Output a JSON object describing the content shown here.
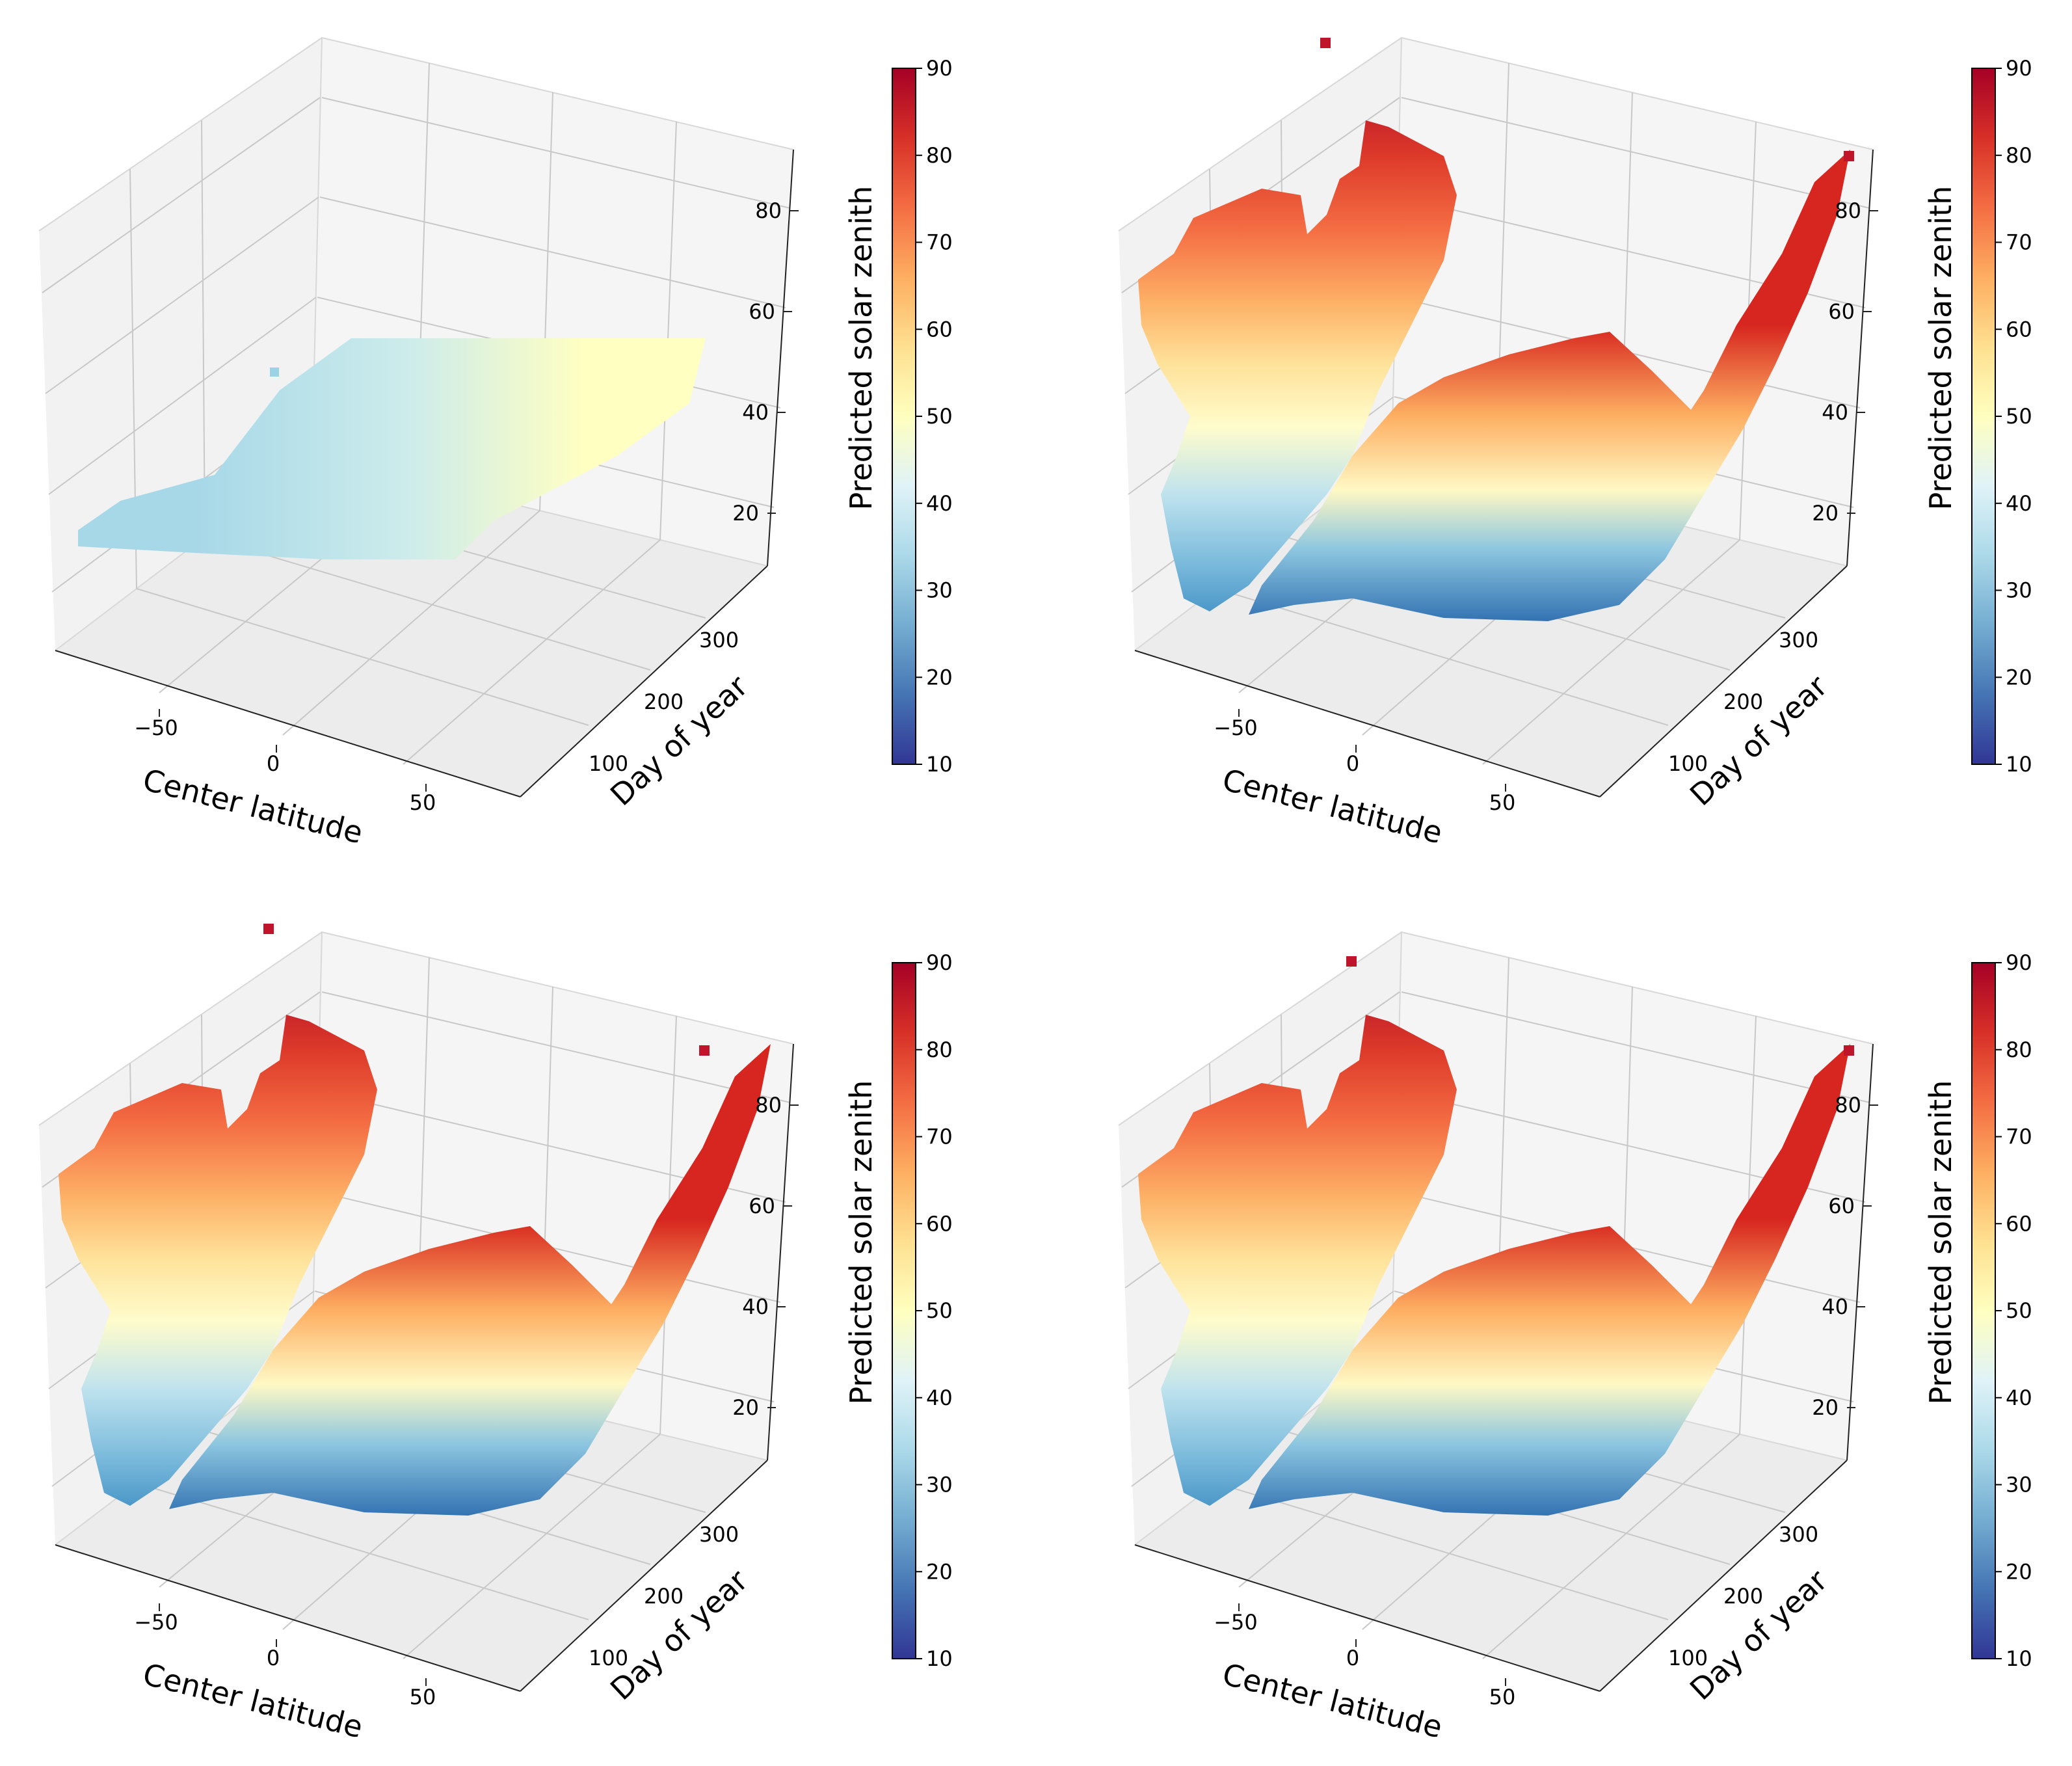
{
  "chart_data": [
    {
      "type": "surface3d",
      "panel": "top-left",
      "variant": "flat",
      "xlabel": "Center latitude",
      "ylabel": "Day of year",
      "zlabel": "Predicted solar zenith",
      "x_ticks": [
        "−50",
        "0",
        "50"
      ],
      "y_ticks": [
        "100",
        "200",
        "300"
      ],
      "z_ticks": [
        "20",
        "40",
        "60",
        "80"
      ],
      "colorbar_ticks": [
        "10",
        "20",
        "30",
        "40",
        "50",
        "60",
        "70",
        "80",
        "90"
      ],
      "colorbar_range": [
        10,
        90
      ],
      "colormap": "RdYlBu_r",
      "z_range_shown": [
        35,
        50
      ]
    },
    {
      "type": "surface3d",
      "panel": "top-right",
      "variant": "curved",
      "xlabel": "Center latitude",
      "ylabel": "Day of year",
      "zlabel": "Predicted solar zenith",
      "x_ticks": [
        "−50",
        "0",
        "50"
      ],
      "y_ticks": [
        "100",
        "200",
        "300"
      ],
      "z_ticks": [
        "20",
        "40",
        "60",
        "80"
      ],
      "colorbar_ticks": [
        "10",
        "20",
        "30",
        "40",
        "50",
        "60",
        "70",
        "80",
        "90"
      ],
      "colorbar_range": [
        10,
        90
      ],
      "colormap": "RdYlBu_r",
      "z_range_shown": [
        20,
        90
      ]
    },
    {
      "type": "surface3d",
      "panel": "bottom-left",
      "variant": "curved",
      "xlabel": "Center latitude",
      "ylabel": "Day of year",
      "zlabel": "Predicted solar zenith",
      "x_ticks": [
        "−50",
        "0",
        "50"
      ],
      "y_ticks": [
        "100",
        "200",
        "300"
      ],
      "z_ticks": [
        "20",
        "40",
        "60",
        "80"
      ],
      "colorbar_ticks": [
        "10",
        "20",
        "30",
        "40",
        "50",
        "60",
        "70",
        "80",
        "90"
      ],
      "colorbar_range": [
        10,
        90
      ],
      "colormap": "RdYlBu_r",
      "z_range_shown": [
        20,
        90
      ]
    },
    {
      "type": "surface3d",
      "panel": "bottom-right",
      "variant": "curved",
      "xlabel": "Center latitude",
      "ylabel": "Day of year",
      "zlabel": "Predicted solar zenith",
      "x_ticks": [
        "−50",
        "0",
        "50"
      ],
      "y_ticks": [
        "100",
        "200",
        "300"
      ],
      "z_ticks": [
        "20",
        "40",
        "60",
        "80"
      ],
      "colorbar_ticks": [
        "10",
        "20",
        "30",
        "40",
        "50",
        "60",
        "70",
        "80",
        "90"
      ],
      "colorbar_range": [
        10,
        90
      ],
      "colormap": "RdYlBu_r",
      "z_range_shown": [
        20,
        90
      ]
    }
  ],
  "colors": {
    "pane_side": "#f2f2f2",
    "pane_floor": "#ececec",
    "grid": "#c8c8c8",
    "axis": "#222222",
    "colormap_stops": [
      "#313695",
      "#4575b4",
      "#74add1",
      "#abd9e9",
      "#e0f3f8",
      "#ffffbf",
      "#fee090",
      "#fdae61",
      "#f46d43",
      "#d73027",
      "#a50026"
    ]
  }
}
